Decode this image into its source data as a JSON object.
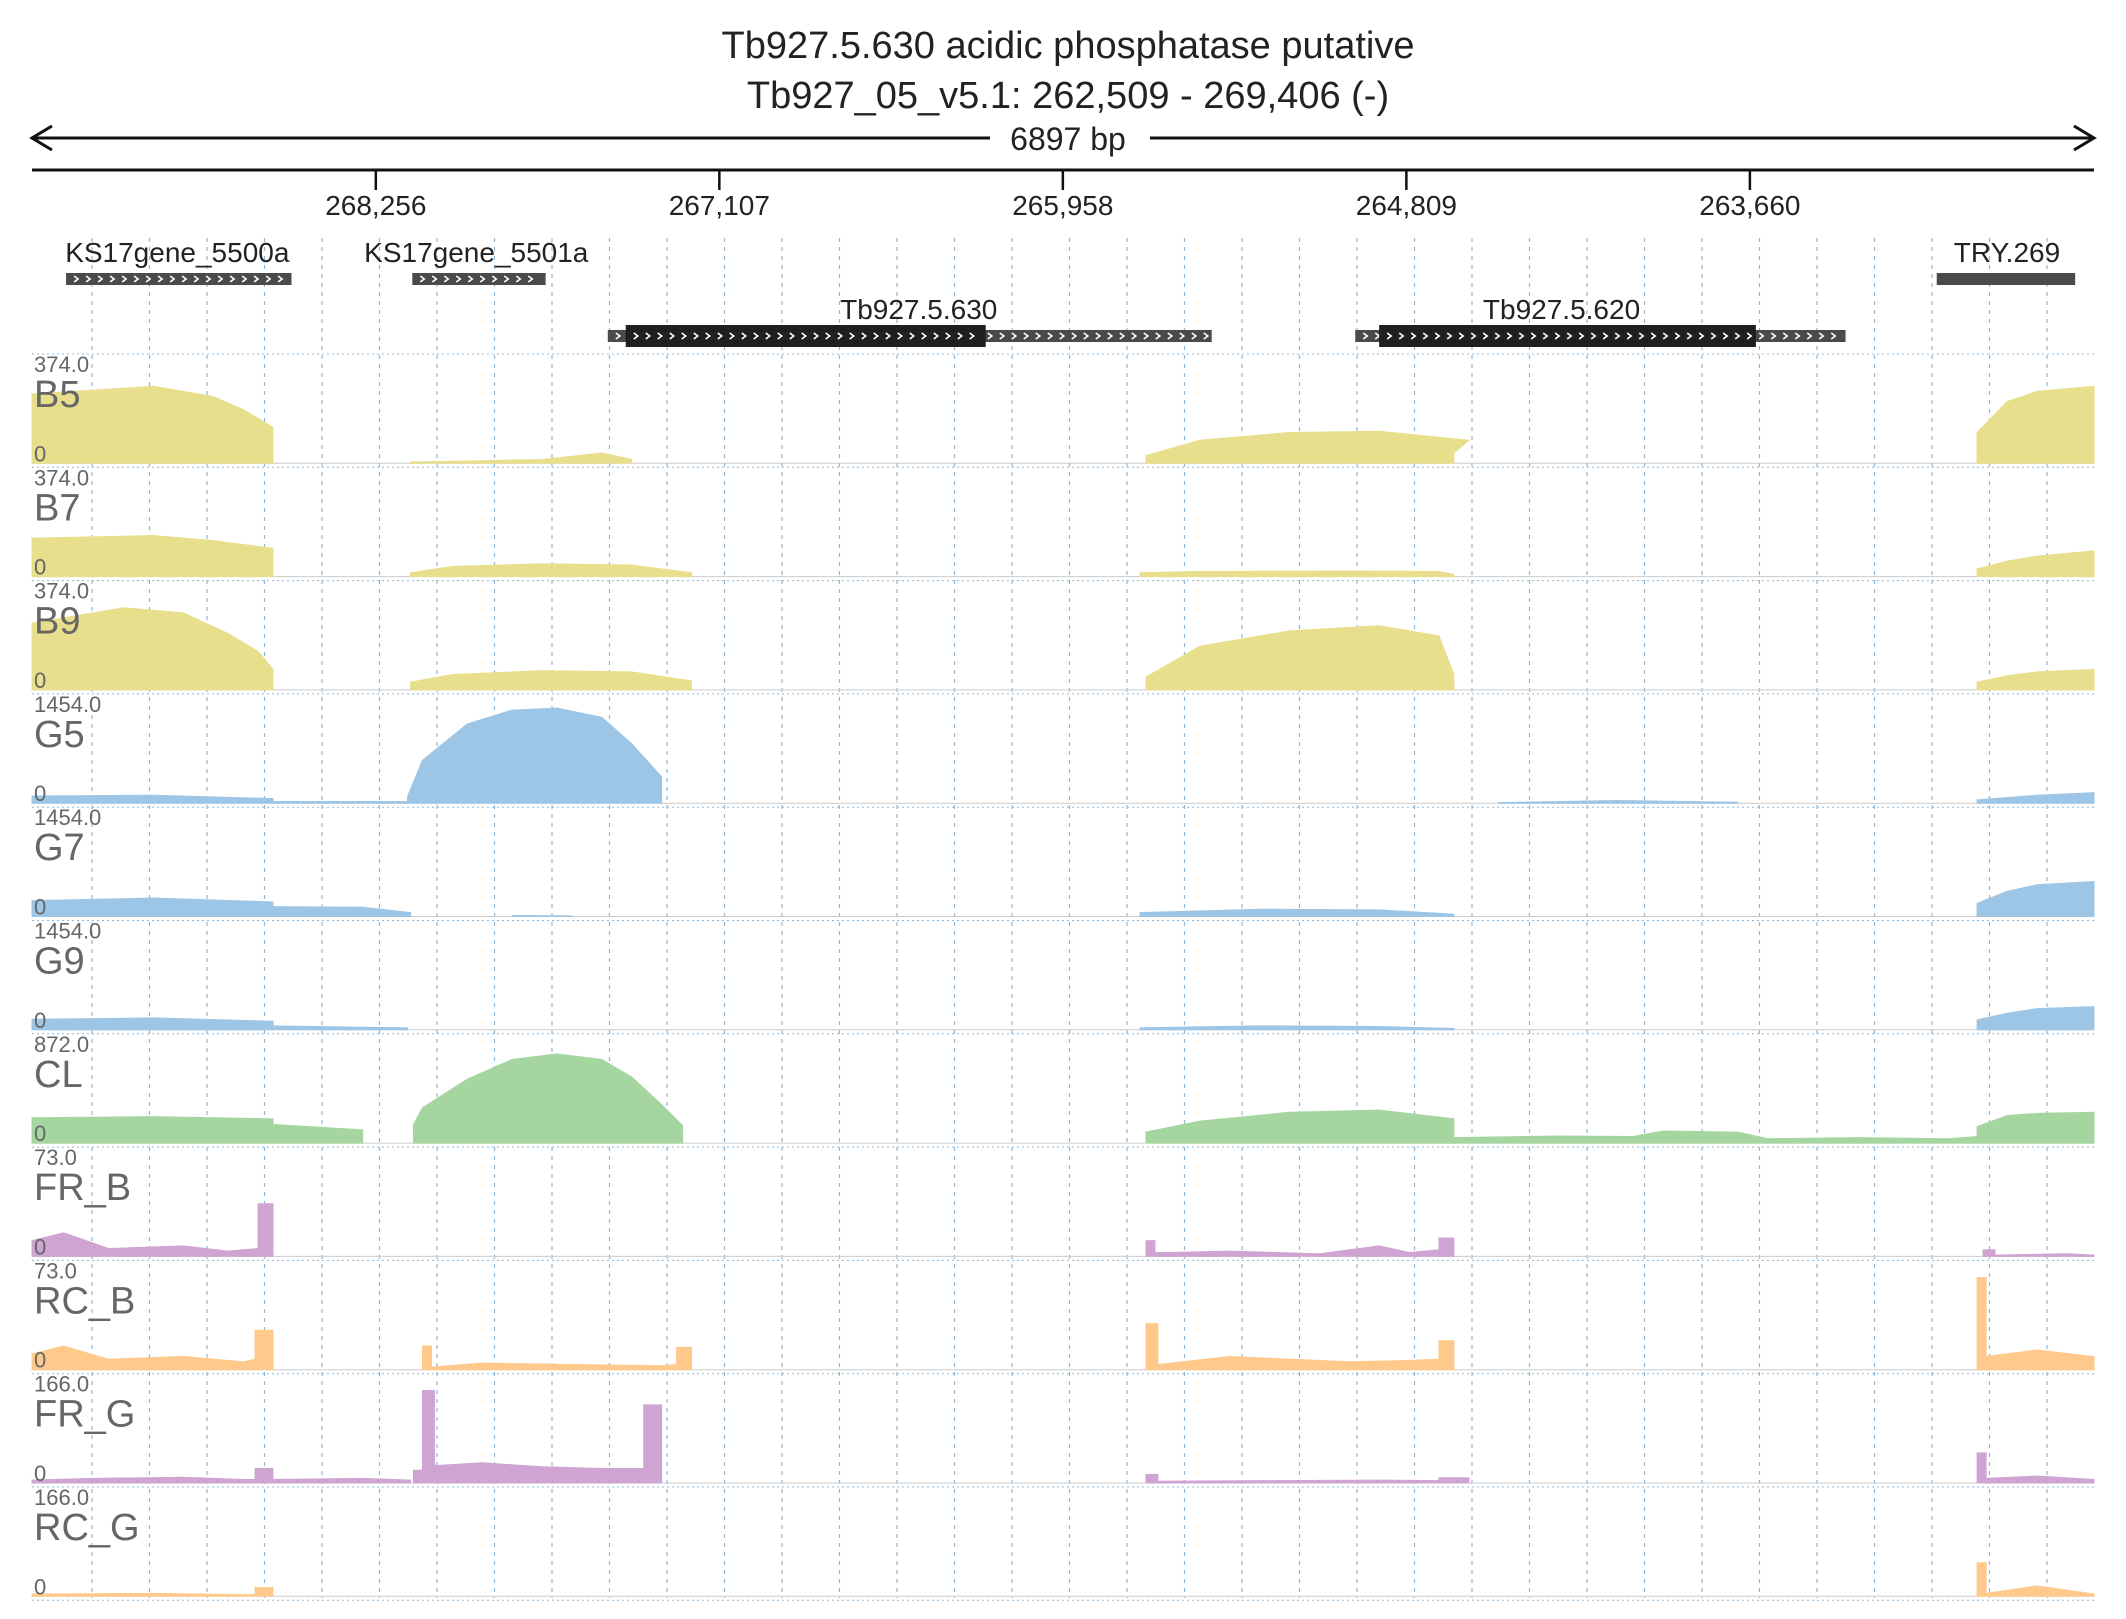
{
  "header": {
    "title": "Tb927.5.630  acidic phosphatase  putative",
    "subtitle": "Tb927_05_v5.1: 262,509 - 269,406 (-)",
    "span_label": "6897 bp"
  },
  "colors": {
    "yellow": "#e8df8c",
    "blue": "#9cc5e6",
    "green": "#a5d6a0",
    "purple": "#cfa4d3",
    "orange": "#ffc98c",
    "feature_dark": "#1f1f1f",
    "feature_mid": "#4a4a4a",
    "grid": "#8fb8d8",
    "label_gray": "#666666"
  },
  "chart_data": {
    "type": "area",
    "xlim": [
      269406,
      262509
    ],
    "x_ticks": [
      {
        "value": 268256,
        "label": "268,256"
      },
      {
        "value": 267107,
        "label": "267,107"
      },
      {
        "value": 265958,
        "label": "265,958"
      },
      {
        "value": 264809,
        "label": "264,809"
      },
      {
        "value": 263660,
        "label": "263,660"
      }
    ],
    "features": [
      {
        "name": "KS17gene_5500a",
        "start": 269292,
        "end": 268538,
        "row": 0,
        "utr": true,
        "label_x": 268920
      },
      {
        "name": "KS17gene_5501a",
        "start": 268134,
        "end": 267688,
        "row": 0,
        "utr": true,
        "label_x": 267920
      },
      {
        "name": "TRY.269",
        "start": 263035,
        "end": 262572,
        "row": 0,
        "solid": true,
        "label_x": 262800
      },
      {
        "name": "Tb927.5.630",
        "start": 267480,
        "end": 265460,
        "cds": [
          267420,
          266216
        ],
        "row": 1,
        "label_x": 266440
      },
      {
        "name": "Tb927.5.620",
        "start": 264980,
        "end": 263340,
        "cds": [
          264900,
          263640
        ],
        "row": 1,
        "label_x": 264290
      }
    ],
    "tracks": [
      {
        "name": "B5",
        "max": "374.0",
        "min": "0",
        "color": "#e8df8c",
        "segments": [
          {
            "x": [
              269406,
              269000,
              268800,
              268700,
              268600,
              268600
            ],
            "y": [
              270,
              300,
              260,
              210,
              140,
              0
            ]
          },
          {
            "x": [
              268140,
              267900,
              267700,
              267500,
              267400,
              267400
            ],
            "y": [
              5,
              10,
              15,
              40,
              15,
              0
            ]
          },
          {
            "x": [
              265680,
              265500,
              265200,
              264900,
              264600,
              264650,
              264650
            ],
            "y": [
              30,
              90,
              120,
              125,
              90,
              40,
              0
            ]
          },
          {
            "x": [
              262900,
              262800,
              262700,
              262509
            ],
            "y": [
              120,
              240,
              280,
              300
            ]
          }
        ]
      },
      {
        "name": "B7",
        "max": "374.0",
        "min": "0",
        "color": "#e8df8c",
        "segments": [
          {
            "x": [
              269406,
              269000,
              268800,
              268600,
              268600
            ],
            "y": [
              150,
              160,
              140,
              110,
              0
            ]
          },
          {
            "x": [
              268140,
              268000,
              267700,
              267400,
              267200,
              267200
            ],
            "y": [
              15,
              40,
              50,
              45,
              15,
              0
            ]
          },
          {
            "x": [
              265700,
              265500,
              265000,
              264700,
              264650,
              264650
            ],
            "y": [
              15,
              20,
              22,
              20,
              8,
              0
            ]
          },
          {
            "x": [
              262900,
              262800,
              262700,
              262509
            ],
            "y": [
              30,
              60,
              80,
              100
            ]
          }
        ]
      },
      {
        "name": "B9",
        "max": "374.0",
        "min": "0",
        "color": "#e8df8c",
        "segments": [
          {
            "x": [
              269406,
              269100,
              268900,
              268750,
              268650,
              268600,
              268600
            ],
            "y": [
              260,
              320,
              300,
              220,
              150,
              80,
              0
            ]
          },
          {
            "x": [
              268140,
              268000,
              267700,
              267400,
              267200,
              267200
            ],
            "y": [
              30,
              60,
              75,
              70,
              35,
              0
            ]
          },
          {
            "x": [
              265680,
              265500,
              265200,
              264900,
              264700,
              264650,
              264650
            ],
            "y": [
              50,
              170,
              230,
              250,
              210,
              60,
              0
            ]
          },
          {
            "x": [
              262900,
              262800,
              262700,
              262509
            ],
            "y": [
              30,
              55,
              70,
              80
            ]
          }
        ]
      },
      {
        "name": "G5",
        "max": "1454.0",
        "min": "0",
        "color": "#9cc5e6",
        "segments": [
          {
            "x": [
              269406,
              269000,
              268600,
              268600
            ],
            "y": [
              110,
              120,
              70,
              0
            ]
          },
          {
            "x": [
              268600,
              268150
            ],
            "y": [
              25,
              25
            ]
          },
          {
            "x": [
              268150,
              268100,
              267950,
              267800,
              267650,
              267500,
              267400,
              267300,
              267300
            ],
            "y": [
              100,
              650,
              1200,
              1410,
              1440,
              1300,
              900,
              400,
              0
            ]
          },
          {
            "x": [
              264500,
              264100,
              263700
            ],
            "y": [
              10,
              40,
              15
            ]
          },
          {
            "x": [
              262900,
              262700,
              262509
            ],
            "y": [
              50,
              120,
              160
            ]
          }
        ]
      },
      {
        "name": "G7",
        "max": "1454.0",
        "min": "0",
        "color": "#9cc5e6",
        "segments": [
          {
            "x": [
              269406,
              269000,
              268600,
              268600
            ],
            "y": [
              240,
              280,
              220,
              0
            ]
          },
          {
            "x": [
              268600,
              268300,
              268140,
              268140
            ],
            "y": [
              150,
              140,
              60,
              0
            ]
          },
          {
            "x": [
              267800,
              267600
            ],
            "y": [
              15,
              10
            ]
          },
          {
            "x": [
              265700,
              265300,
              264900,
              264650
            ],
            "y": [
              60,
              110,
              100,
              35
            ]
          },
          {
            "x": [
              262900,
              262800,
              262700,
              262509
            ],
            "y": [
              200,
              380,
              480,
              530
            ]
          }
        ]
      },
      {
        "name": "G9",
        "max": "1454.0",
        "min": "0",
        "color": "#9cc5e6",
        "segments": [
          {
            "x": [
              269406,
              269000,
              268600,
              268600
            ],
            "y": [
              160,
              180,
              130,
              0
            ]
          },
          {
            "x": [
              268600,
              268150
            ],
            "y": [
              60,
              30
            ]
          },
          {
            "x": [
              265700,
              265300,
              264900,
              264650
            ],
            "y": [
              30,
              60,
              50,
              20
            ]
          },
          {
            "x": [
              262900,
              262800,
              262700,
              262509
            ],
            "y": [
              150,
              250,
              320,
              350
            ]
          }
        ]
      },
      {
        "name": "CL",
        "max": "872.0",
        "min": "0",
        "color": "#a5d6a0",
        "segments": [
          {
            "x": [
              269406,
              269000,
              268600,
              268600
            ],
            "y": [
              230,
              240,
              220,
              0
            ]
          },
          {
            "x": [
              268600,
              268300,
              268300
            ],
            "y": [
              170,
              120,
              0
            ]
          },
          {
            "x": [
              268130,
              268100,
              267950,
              267800,
              267650,
              267500,
              267400,
              267300,
              267230,
              267230
            ],
            "y": [
              170,
              320,
              580,
              760,
              810,
              760,
              600,
              350,
              160,
              0
            ]
          },
          {
            "x": [
              265680,
              265500,
              265200,
              264900,
              264650,
              264650
            ],
            "y": [
              100,
              200,
              280,
              300,
              220,
              0
            ]
          },
          {
            "x": [
              264650,
              264300,
              264050,
              263950,
              263700,
              263600,
              263600
            ],
            "y": [
              50,
              65,
              60,
              110,
              100,
              40,
              0
            ]
          },
          {
            "x": [
              263600,
              263300,
              263000,
              262900
            ],
            "y": [
              40,
              50,
              40,
              60
            ]
          },
          {
            "x": [
              262900,
              262800,
              262700,
              262509
            ],
            "y": [
              150,
              250,
              270,
              280
            ]
          }
        ]
      },
      {
        "name": "FR_B",
        "max": "73.0",
        "min": "0",
        "color": "#cfa4d3",
        "segments": [
          {
            "x": [
              269406,
              269300,
              269150,
              268900,
              268750,
              268650,
              268650,
              268600,
              268600
            ],
            "y": [
              12,
              18,
              6,
              8,
              4,
              6,
              40,
              40,
              0
            ]
          },
          {
            "x": [
              265680,
              265650,
              265650,
              265600,
              265400,
              265100,
              264900,
              264800,
              264700
            ],
            "y": [
              12,
              12,
              3,
              3,
              4,
              2,
              8,
              3,
              5
            ]
          },
          {
            "x": [
              264700,
              264650,
              264650
            ],
            "y": [
              14,
              14,
              0
            ]
          },
          {
            "x": [
              262880,
              262840,
              262840,
              262600,
              262509
            ],
            "y": [
              5,
              5,
              1,
              2,
              1
            ]
          }
        ]
      },
      {
        "name": "RC_B",
        "max": "73.0",
        "min": "0",
        "color": "#ffc98c",
        "segments": [
          {
            "x": [
              269406,
              269300,
              269150,
              268900,
              268700,
              268660,
              268660,
              268600,
              268600
            ],
            "y": [
              12,
              18,
              8,
              10,
              6,
              8,
              30,
              30,
              0
            ]
          },
          {
            "x": [
              268100,
              268070,
              268070,
              267900,
              267600,
              267300,
              267250,
              267250,
              267200,
              267200
            ],
            "y": [
              18,
              18,
              2,
              5,
              4,
              3,
              4,
              17,
              17,
              0
            ]
          },
          {
            "x": [
              265680,
              265640,
              265640,
              265400,
              265200,
              265000,
              264800,
              264700,
              264700,
              264650,
              264650
            ],
            "y": [
              35,
              35,
              4,
              10,
              8,
              6,
              7,
              8,
              22,
              22,
              0
            ]
          },
          {
            "x": [
              262900,
              262870,
              262870,
              262700,
              262509
            ],
            "y": [
              70,
              70,
              10,
              15,
              10
            ]
          }
        ]
      },
      {
        "name": "FR_G",
        "max": "166.0",
        "min": "0",
        "color": "#cfa4d3",
        "segments": [
          {
            "x": [
              269406,
              269200,
              268900,
              268700,
              268660,
              268660,
              268600,
              268600
            ],
            "y": [
              5,
              8,
              10,
              6,
              6,
              25,
              25,
              0
            ]
          },
          {
            "x": [
              268600,
              268300,
              268140
            ],
            "y": [
              6,
              8,
              5
            ]
          },
          {
            "x": [
              268130,
              268100,
              268100,
              268060,
              268060,
              267900,
              267700,
              267500,
              267360,
              267360,
              267300,
              267300
            ],
            "y": [
              22,
              22,
              160,
              160,
              30,
              35,
              28,
              25,
              25,
              135,
              135,
              0
            ]
          },
          {
            "x": [
              265680,
              265640,
              265640,
              265300,
              264900,
              264700,
              264700,
              264600,
              264600
            ],
            "y": [
              15,
              15,
              3,
              4,
              5,
              4,
              9,
              9,
              0
            ]
          },
          {
            "x": [
              262900,
              262870,
              262870,
              262700,
              262509
            ],
            "y": [
              52,
              52,
              8,
              12,
              6
            ]
          }
        ]
      },
      {
        "name": "RC_G",
        "max": "166.0",
        "min": "0",
        "color": "#ffc98c",
        "segments": [
          {
            "x": [
              269406,
              269000,
              268700,
              268660,
              268660,
              268600,
              268600
            ],
            "y": [
              4,
              5,
              3,
              3,
              15,
              15,
              0
            ]
          },
          {
            "x": [
              262900,
              262870,
              262870,
              262700,
              262509
            ],
            "y": [
              58,
              58,
              5,
              18,
              4
            ]
          }
        ]
      }
    ]
  }
}
